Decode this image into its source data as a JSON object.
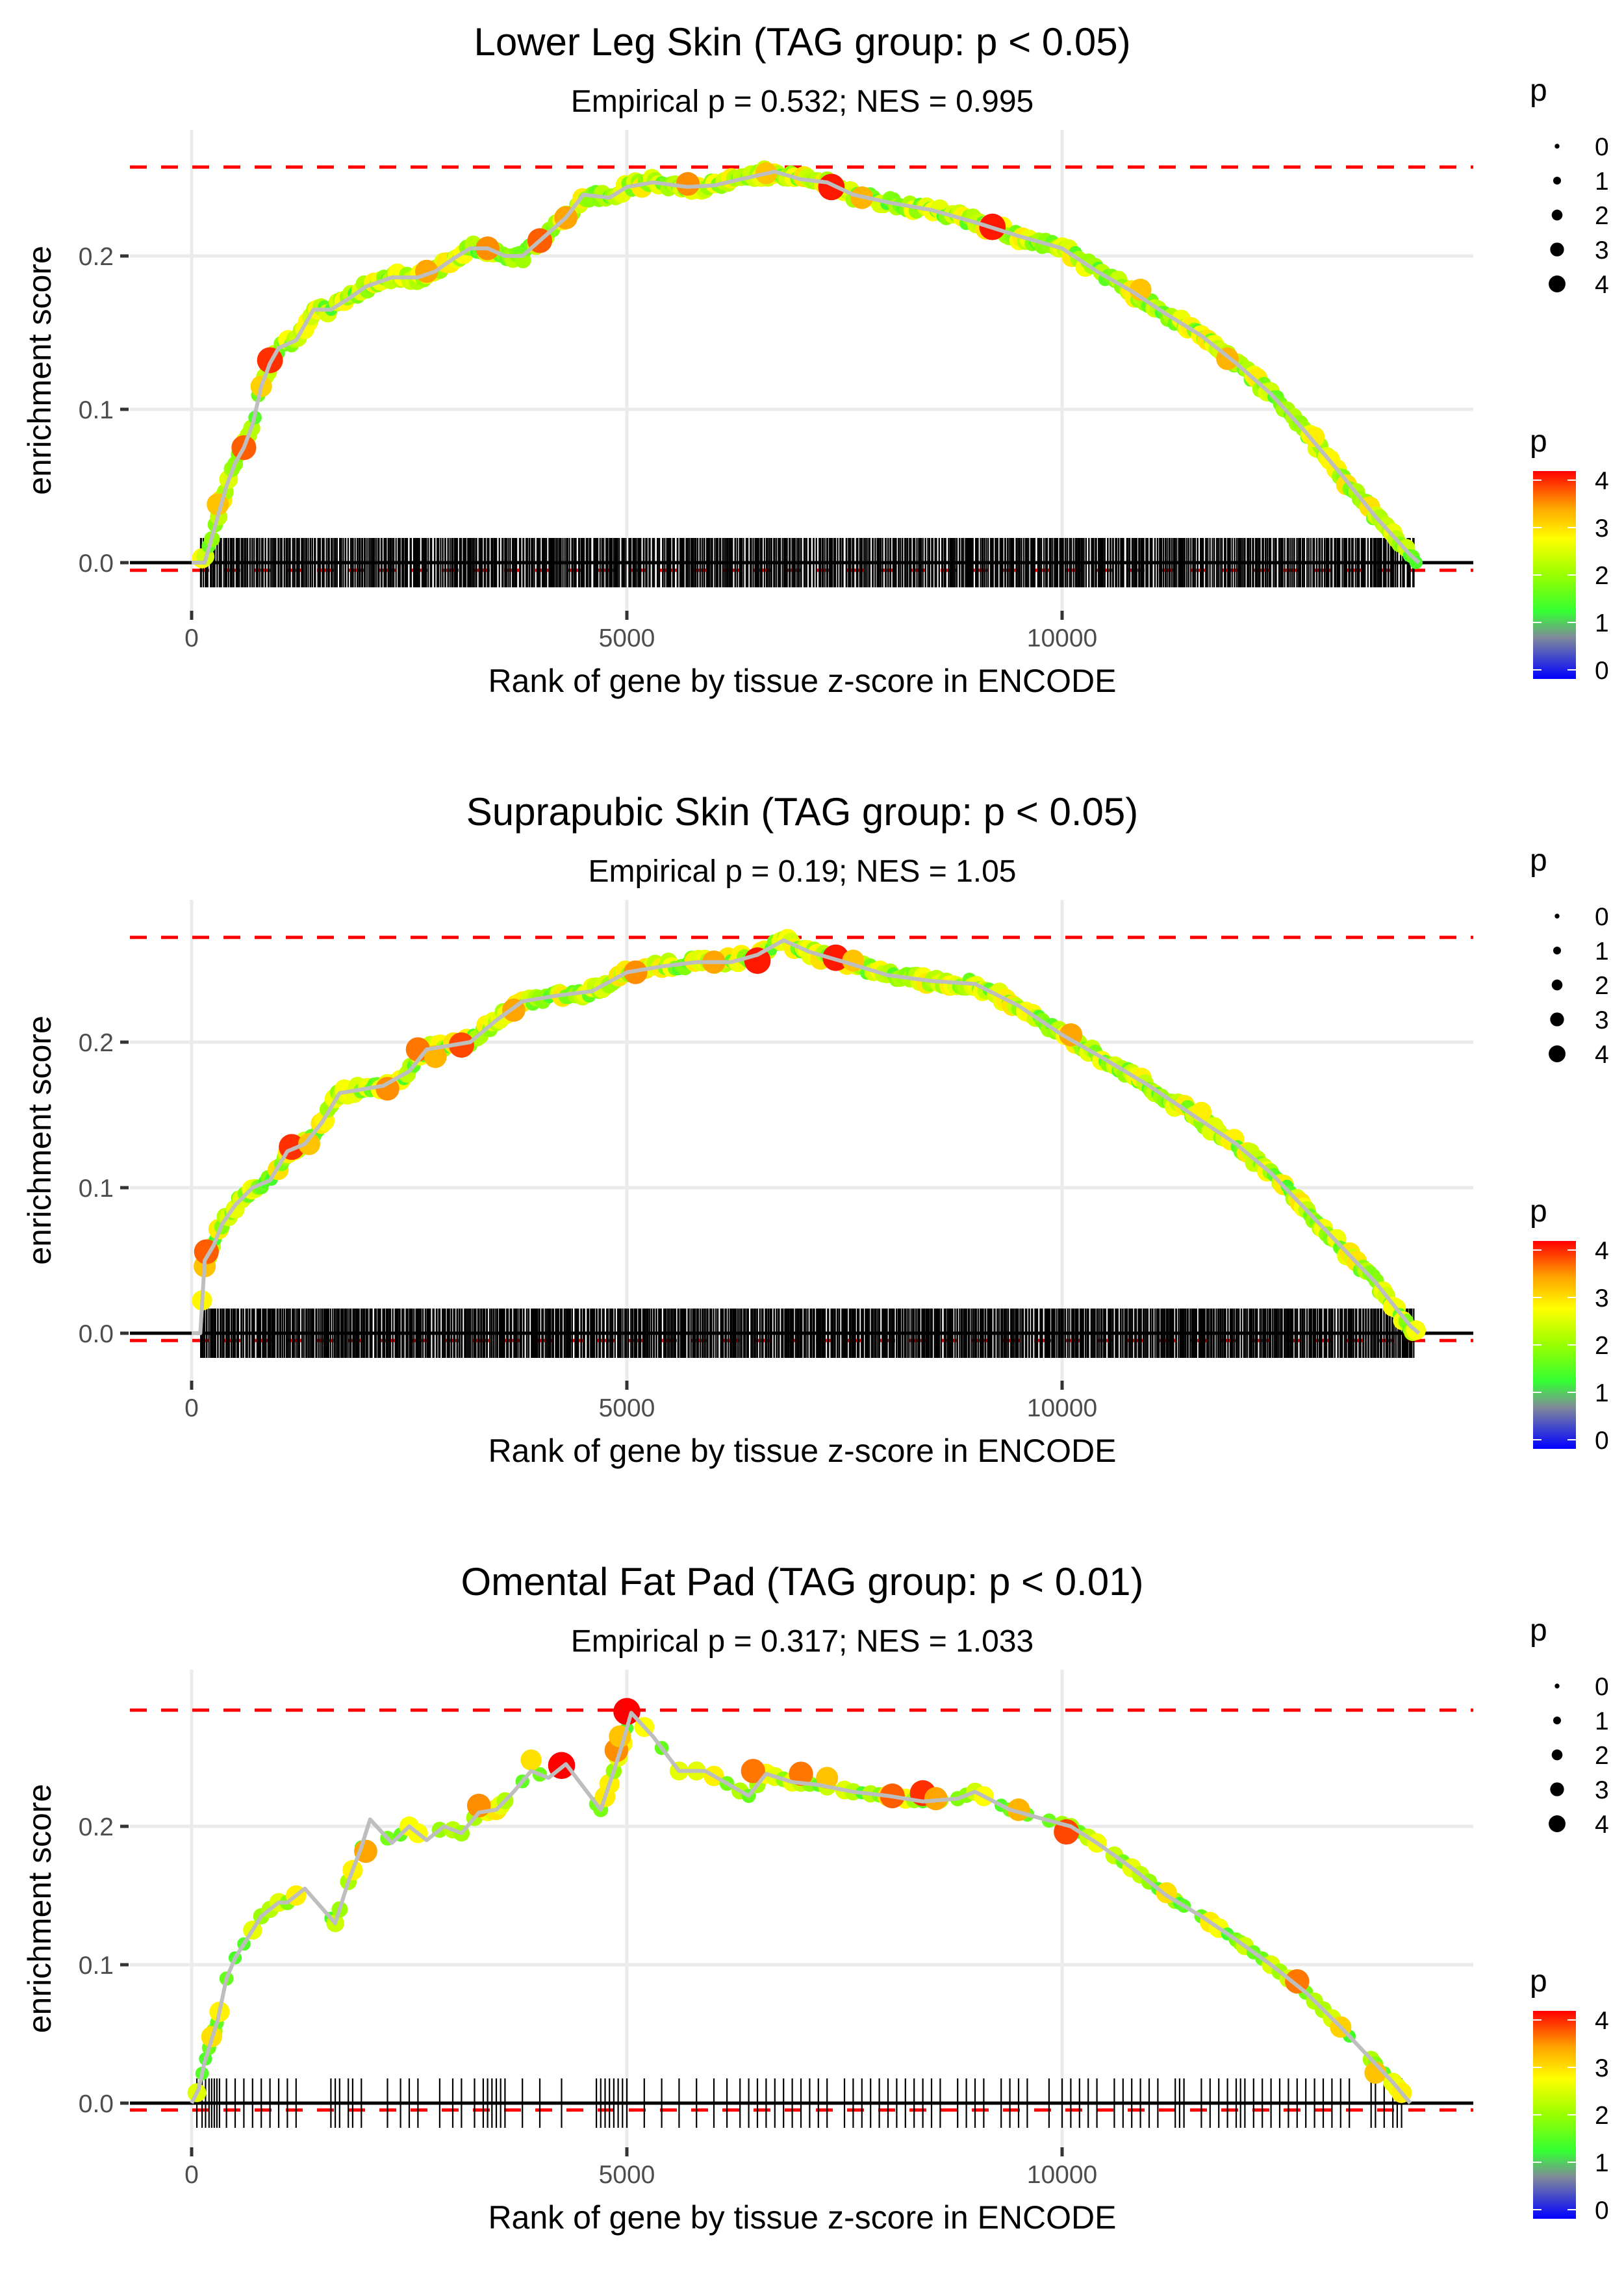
{
  "figure": {
    "description": "Three GSEA-style running enrichment score plots",
    "colors": {
      "max_line": "#ff0000",
      "zero_line": "#000000",
      "gridline": "#ebebeb",
      "curve_line": "#bebebe",
      "barcode": "#000000",
      "gradient_stops": [
        {
          "p": 0,
          "color": "#0000ff"
        },
        {
          "p": 0.8,
          "color": "#808a9a"
        },
        {
          "p": 1.3,
          "color": "#33ff33"
        },
        {
          "p": 2.0,
          "color": "#99ff00"
        },
        {
          "p": 2.7,
          "color": "#ffff00"
        },
        {
          "p": 3.3,
          "color": "#ffa500"
        },
        {
          "p": 4.0,
          "color": "#ff0000"
        }
      ]
    }
  },
  "chart_data": [
    {
      "type": "line",
      "title": "Lower Leg Skin (TAG group: p < 0.05)",
      "subtitle": "Empirical p = 0.532; NES = 0.995",
      "xlabel": "Rank of gene by tissue z-score in ENCODE",
      "ylabel": "enrichment score",
      "xlim": [
        -1000,
        14800
      ],
      "ylim": [
        -0.03,
        0.275
      ],
      "x_ticks": [
        0,
        5000,
        10000
      ],
      "x_tick_labels": [
        "0",
        "5000",
        "10000"
      ],
      "y_ticks": [
        0.0,
        0.1,
        0.2
      ],
      "y_tick_labels": [
        "0.0",
        "0.1",
        "0.2"
      ],
      "grid": true,
      "max_es_line": 0.258,
      "min_es_line": -0.005,
      "barcode": {
        "start": 100,
        "end": 14050,
        "count": 900,
        "style": "dense"
      },
      "curve": [
        [
          0,
          0.0
        ],
        [
          150,
          0.0
        ],
        [
          300,
          0.03
        ],
        [
          400,
          0.05
        ],
        [
          500,
          0.065
        ],
        [
          600,
          0.075
        ],
        [
          700,
          0.09
        ],
        [
          800,
          0.115
        ],
        [
          900,
          0.13
        ],
        [
          1000,
          0.14
        ],
        [
          1200,
          0.145
        ],
        [
          1400,
          0.165
        ],
        [
          1600,
          0.165
        ],
        [
          1800,
          0.172
        ],
        [
          2000,
          0.18
        ],
        [
          2300,
          0.186
        ],
        [
          2600,
          0.186
        ],
        [
          2800,
          0.19
        ],
        [
          3000,
          0.198
        ],
        [
          3200,
          0.205
        ],
        [
          3400,
          0.205
        ],
        [
          3600,
          0.2
        ],
        [
          3800,
          0.2
        ],
        [
          4000,
          0.21
        ],
        [
          4300,
          0.225
        ],
        [
          4500,
          0.24
        ],
        [
          4800,
          0.238
        ],
        [
          5000,
          0.245
        ],
        [
          5300,
          0.248
        ],
        [
          5700,
          0.245
        ],
        [
          6000,
          0.246
        ],
        [
          6300,
          0.25
        ],
        [
          6700,
          0.255
        ],
        [
          7000,
          0.25
        ],
        [
          7300,
          0.248
        ],
        [
          7600,
          0.24
        ],
        [
          8000,
          0.235
        ],
        [
          8500,
          0.23
        ],
        [
          9000,
          0.222
        ],
        [
          9500,
          0.213
        ],
        [
          10000,
          0.205
        ],
        [
          10400,
          0.19
        ],
        [
          10800,
          0.177
        ],
        [
          11200,
          0.162
        ],
        [
          11600,
          0.148
        ],
        [
          12000,
          0.13
        ],
        [
          12400,
          0.11
        ],
        [
          12800,
          0.085
        ],
        [
          13200,
          0.058
        ],
        [
          13600,
          0.03
        ],
        [
          14000,
          0.005
        ],
        [
          14100,
          0.0
        ]
      ],
      "highlight_points": [
        {
          "x": 300,
          "y": 0.038,
          "p": 3.1
        },
        {
          "x": 600,
          "y": 0.075,
          "p": 3.6
        },
        {
          "x": 800,
          "y": 0.115,
          "p": 3.0
        },
        {
          "x": 900,
          "y": 0.132,
          "p": 3.8
        },
        {
          "x": 2700,
          "y": 0.19,
          "p": 3.3
        },
        {
          "x": 3400,
          "y": 0.205,
          "p": 3.4
        },
        {
          "x": 4000,
          "y": 0.21,
          "p": 3.6
        },
        {
          "x": 4300,
          "y": 0.225,
          "p": 3.3
        },
        {
          "x": 5700,
          "y": 0.247,
          "p": 3.4
        },
        {
          "x": 6600,
          "y": 0.254,
          "p": 3.1
        },
        {
          "x": 7350,
          "y": 0.245,
          "p": 3.9
        },
        {
          "x": 7700,
          "y": 0.238,
          "p": 3.2
        },
        {
          "x": 9200,
          "y": 0.219,
          "p": 3.9
        },
        {
          "x": 10900,
          "y": 0.178,
          "p": 3.1
        },
        {
          "x": 11900,
          "y": 0.133,
          "p": 3.2
        },
        {
          "x": 12900,
          "y": 0.082,
          "p": 2.8
        }
      ],
      "size_legend": {
        "title": "p",
        "values": [
          "0",
          "1",
          "2",
          "3",
          "4"
        ]
      },
      "color_legend": {
        "title": "p",
        "ticks": [
          "4",
          "3",
          "2",
          "1",
          "0"
        ]
      }
    },
    {
      "type": "line",
      "title": "Suprapubic Skin (TAG group: p < 0.05)",
      "subtitle": "Empirical p = 0.19; NES = 1.05",
      "xlabel": "Rank of gene by tissue z-score in ENCODE",
      "ylabel": "enrichment score",
      "xlim": [
        -1000,
        14800
      ],
      "ylim": [
        -0.03,
        0.29
      ],
      "x_ticks": [
        0,
        5000,
        10000
      ],
      "x_tick_labels": [
        "0",
        "5000",
        "10000"
      ],
      "y_ticks": [
        0.0,
        0.1,
        0.2
      ],
      "y_tick_labels": [
        "0.0",
        "0.1",
        "0.2"
      ],
      "grid": true,
      "max_es_line": 0.272,
      "min_es_line": -0.005,
      "barcode": {
        "start": 100,
        "end": 14050,
        "count": 1000,
        "style": "dense"
      },
      "curve": [
        [
          0,
          0.0
        ],
        [
          100,
          0.0
        ],
        [
          150,
          0.05
        ],
        [
          250,
          0.06
        ],
        [
          350,
          0.075
        ],
        [
          500,
          0.088
        ],
        [
          700,
          0.1
        ],
        [
          900,
          0.105
        ],
        [
          1100,
          0.125
        ],
        [
          1300,
          0.13
        ],
        [
          1500,
          0.145
        ],
        [
          1700,
          0.165
        ],
        [
          2000,
          0.168
        ],
        [
          2200,
          0.17
        ],
        [
          2500,
          0.18
        ],
        [
          2700,
          0.195
        ],
        [
          3000,
          0.198
        ],
        [
          3200,
          0.2
        ],
        [
          3500,
          0.215
        ],
        [
          3800,
          0.228
        ],
        [
          4200,
          0.232
        ],
        [
          4600,
          0.235
        ],
        [
          5000,
          0.248
        ],
        [
          5400,
          0.252
        ],
        [
          5800,
          0.255
        ],
        [
          6200,
          0.255
        ],
        [
          6500,
          0.26
        ],
        [
          6800,
          0.27
        ],
        [
          7100,
          0.262
        ],
        [
          7500,
          0.255
        ],
        [
          8000,
          0.246
        ],
        [
          8500,
          0.242
        ],
        [
          9000,
          0.24
        ],
        [
          9500,
          0.225
        ],
        [
          10000,
          0.205
        ],
        [
          10500,
          0.188
        ],
        [
          11000,
          0.17
        ],
        [
          11500,
          0.15
        ],
        [
          12000,
          0.13
        ],
        [
          12400,
          0.11
        ],
        [
          12800,
          0.085
        ],
        [
          13200,
          0.06
        ],
        [
          13600,
          0.035
        ],
        [
          14000,
          0.005
        ],
        [
          14100,
          0.0
        ]
      ],
      "highlight_points": [
        {
          "x": 150,
          "y": 0.046,
          "p": 3.1
        },
        {
          "x": 170,
          "y": 0.056,
          "p": 3.6
        },
        {
          "x": 1150,
          "y": 0.128,
          "p": 3.8
        },
        {
          "x": 1350,
          "y": 0.13,
          "p": 3.1
        },
        {
          "x": 2250,
          "y": 0.168,
          "p": 3.4
        },
        {
          "x": 2600,
          "y": 0.195,
          "p": 3.5
        },
        {
          "x": 2800,
          "y": 0.19,
          "p": 3.2
        },
        {
          "x": 3100,
          "y": 0.198,
          "p": 3.7
        },
        {
          "x": 3700,
          "y": 0.222,
          "p": 3.3
        },
        {
          "x": 5100,
          "y": 0.248,
          "p": 3.4
        },
        {
          "x": 6000,
          "y": 0.255,
          "p": 3.3
        },
        {
          "x": 6500,
          "y": 0.256,
          "p": 3.9
        },
        {
          "x": 7400,
          "y": 0.258,
          "p": 3.9
        },
        {
          "x": 7600,
          "y": 0.256,
          "p": 3.1
        },
        {
          "x": 10100,
          "y": 0.205,
          "p": 3.3
        },
        {
          "x": 11600,
          "y": 0.152,
          "p": 2.8
        }
      ],
      "size_legend": {
        "title": "p",
        "values": [
          "0",
          "1",
          "2",
          "3",
          "4"
        ]
      },
      "color_legend": {
        "title": "p",
        "ticks": [
          "4",
          "3",
          "2",
          "1",
          "0"
        ]
      }
    },
    {
      "type": "line",
      "title": "Omental Fat Pad (TAG group: p < 0.01)",
      "subtitle": "Empirical p = 0.317; NES = 1.033",
      "xlabel": "Rank of gene by tissue z-score in ENCODE",
      "ylabel": "enrichment score",
      "xlim": [
        -1000,
        14800
      ],
      "ylim": [
        -0.03,
        0.3
      ],
      "x_ticks": [
        0,
        5000,
        10000
      ],
      "x_tick_labels": [
        "0",
        "5000",
        "10000"
      ],
      "y_ticks": [
        0.0,
        0.1,
        0.2
      ],
      "y_tick_labels": [
        "0.0",
        "0.1",
        "0.2"
      ],
      "grid": true,
      "max_es_line": 0.284,
      "min_es_line": -0.005,
      "barcode": {
        "style": "explicit",
        "ranks": [
          60,
          120,
          160,
          200,
          230,
          260,
          290,
          320,
          400,
          500,
          600,
          700,
          800,
          900,
          1000,
          1100,
          1200,
          1600,
          1650,
          1700,
          1800,
          1850,
          1950,
          2250,
          2400,
          2500,
          2600,
          2850,
          3000,
          3100,
          3250,
          3350,
          3400,
          3450,
          3500,
          3550,
          3600,
          3800,
          4000,
          4250,
          4650,
          4700,
          4750,
          4800,
          4850,
          4900,
          4950,
          5000,
          5200,
          5400,
          5600,
          5800,
          6000,
          6150,
          6300,
          6400,
          6500,
          6600,
          6700,
          6800,
          6900,
          7000,
          7100,
          7200,
          7300,
          7500,
          7600,
          7700,
          7800,
          7900,
          8000,
          8100,
          8200,
          8300,
          8400,
          8500,
          8600,
          8800,
          8900,
          9000,
          9100,
          9300,
          9400,
          9500,
          9600,
          9850,
          10000,
          10100,
          10200,
          10300,
          10400,
          10600,
          10700,
          10800,
          10900,
          11000,
          11100,
          11300,
          11350,
          11400,
          11600,
          11700,
          11800,
          11900,
          12000,
          12050,
          12100,
          12200,
          12300,
          12400,
          12500,
          12600,
          12700,
          12800,
          12900,
          13000,
          13100,
          13200,
          13300,
          13550,
          13600,
          13700,
          13800,
          13850,
          13900
        ]
      },
      "curve": [
        [
          0,
          0.0
        ],
        [
          80,
          0.01
        ],
        [
          150,
          0.03
        ],
        [
          200,
          0.04
        ],
        [
          250,
          0.05
        ],
        [
          300,
          0.06
        ],
        [
          400,
          0.09
        ],
        [
          500,
          0.105
        ],
        [
          600,
          0.115
        ],
        [
          700,
          0.125
        ],
        [
          800,
          0.135
        ],
        [
          1000,
          0.145
        ],
        [
          1100,
          0.145
        ],
        [
          1300,
          0.155
        ],
        [
          1650,
          0.13
        ],
        [
          1800,
          0.16
        ],
        [
          1950,
          0.185
        ],
        [
          2050,
          0.205
        ],
        [
          2300,
          0.188
        ],
        [
          2500,
          0.2
        ],
        [
          2700,
          0.19
        ],
        [
          2900,
          0.2
        ],
        [
          3100,
          0.195
        ],
        [
          3300,
          0.21
        ],
        [
          3500,
          0.212
        ],
        [
          3700,
          0.225
        ],
        [
          3900,
          0.24
        ],
        [
          4100,
          0.235
        ],
        [
          4300,
          0.245
        ],
        [
          4700,
          0.212
        ],
        [
          4850,
          0.24
        ],
        [
          4950,
          0.26
        ],
        [
          5050,
          0.282
        ],
        [
          5300,
          0.265
        ],
        [
          5600,
          0.24
        ],
        [
          5900,
          0.24
        ],
        [
          6400,
          0.222
        ],
        [
          6600,
          0.238
        ],
        [
          6900,
          0.232
        ],
        [
          7200,
          0.23
        ],
        [
          7600,
          0.225
        ],
        [
          8000,
          0.222
        ],
        [
          8400,
          0.218
        ],
        [
          8800,
          0.22
        ],
        [
          9000,
          0.225
        ],
        [
          9400,
          0.212
        ],
        [
          9800,
          0.205
        ],
        [
          10100,
          0.2
        ],
        [
          10400,
          0.188
        ],
        [
          10800,
          0.17
        ],
        [
          11200,
          0.15
        ],
        [
          11600,
          0.135
        ],
        [
          12000,
          0.118
        ],
        [
          12400,
          0.1
        ],
        [
          12800,
          0.08
        ],
        [
          13200,
          0.055
        ],
        [
          13500,
          0.035
        ],
        [
          13800,
          0.015
        ],
        [
          14000,
          0.0
        ]
      ],
      "highlight_points": [
        {
          "x": 230,
          "y": 0.048,
          "p": 2.9
        },
        {
          "x": 2000,
          "y": 0.182,
          "p": 3.3
        },
        {
          "x": 3300,
          "y": 0.215,
          "p": 3.4
        },
        {
          "x": 3900,
          "y": 0.248,
          "p": 2.9
        },
        {
          "x": 4250,
          "y": 0.244,
          "p": 4.0
        },
        {
          "x": 4880,
          "y": 0.255,
          "p": 3.4
        },
        {
          "x": 4920,
          "y": 0.265,
          "p": 3.1
        },
        {
          "x": 5000,
          "y": 0.283,
          "p": 4.0
        },
        {
          "x": 6450,
          "y": 0.24,
          "p": 3.5
        },
        {
          "x": 7000,
          "y": 0.238,
          "p": 3.5
        },
        {
          "x": 7300,
          "y": 0.235,
          "p": 3.1
        },
        {
          "x": 8050,
          "y": 0.222,
          "p": 3.6
        },
        {
          "x": 8400,
          "y": 0.224,
          "p": 3.8
        },
        {
          "x": 8550,
          "y": 0.22,
          "p": 3.3
        },
        {
          "x": 9500,
          "y": 0.212,
          "p": 3.2
        },
        {
          "x": 10050,
          "y": 0.196,
          "p": 3.7
        },
        {
          "x": 11200,
          "y": 0.152,
          "p": 2.9
        },
        {
          "x": 12700,
          "y": 0.088,
          "p": 3.5
        },
        {
          "x": 13200,
          "y": 0.055,
          "p": 3.0
        },
        {
          "x": 13600,
          "y": 0.022,
          "p": 3.1
        }
      ],
      "size_legend": {
        "title": "p",
        "values": [
          "0",
          "1",
          "2",
          "3",
          "4"
        ]
      },
      "color_legend": {
        "title": "p",
        "ticks": [
          "4",
          "3",
          "2",
          "1",
          "0"
        ]
      }
    }
  ]
}
